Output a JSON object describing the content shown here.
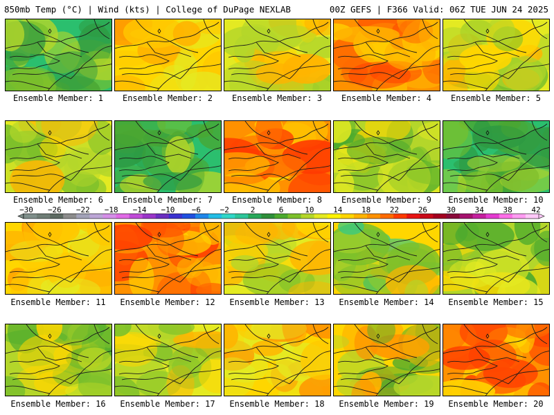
{
  "header": {
    "left": "850mb Temp (°C) | Wind (kts) | College of DuPage NEXLAB",
    "right": "00Z GEFS | F366 Valid: 06Z TUE JUN 24 2025"
  },
  "members": [
    {
      "label": "Ensemble Member: 1",
      "scheme": "cool"
    },
    {
      "label": "Ensemble Member: 2",
      "scheme": "warm"
    },
    {
      "label": "Ensemble Member: 3",
      "scheme": "mild"
    },
    {
      "label": "Ensemble Member: 4",
      "scheme": "hot"
    },
    {
      "label": "Ensemble Member: 5",
      "scheme": "mild"
    },
    {
      "label": "Ensemble Member: 6",
      "scheme": "mild"
    },
    {
      "label": "Ensemble Member: 7",
      "scheme": "cool"
    },
    {
      "label": "Ensemble Member: 8",
      "scheme": "hot"
    },
    {
      "label": "Ensemble Member: 9",
      "scheme": "mildgreen"
    },
    {
      "label": "Ensemble Member: 10",
      "scheme": "cool"
    },
    {
      "label": "Ensemble Member: 11",
      "scheme": "warm"
    },
    {
      "label": "Ensemble Member: 12",
      "scheme": "hot"
    },
    {
      "label": "Ensemble Member: 13",
      "scheme": "mild"
    },
    {
      "label": "Ensemble Member: 14",
      "scheme": "mildcool"
    },
    {
      "label": "Ensemble Member: 15",
      "scheme": "mildgreen"
    },
    {
      "label": "Ensemble Member: 16",
      "scheme": "mildgreen"
    },
    {
      "label": "Ensemble Member: 17",
      "scheme": "mild"
    },
    {
      "label": "Ensemble Member: 18",
      "scheme": "warm"
    },
    {
      "label": "Ensemble Member: 19",
      "scheme": "warmgreen"
    },
    {
      "label": "Ensemble Member: 20",
      "scheme": "hot"
    }
  ],
  "colorbar": {
    "ticks": [
      "−30",
      "−26",
      "−22",
      "−18",
      "−14",
      "−10",
      "−6",
      "−2",
      "2",
      "6",
      "10",
      "14",
      "18",
      "22",
      "26",
      "30",
      "34",
      "38",
      "42"
    ],
    "colors": [
      "#7f8f8b",
      "#6e7d76",
      "#5d6a62",
      "#8c8c8c",
      "#a3a3b8",
      "#bca6d6",
      "#d58ee8",
      "#e06ae6",
      "#c04ad8",
      "#9a35c9",
      "#6a2ec0",
      "#3b32d0",
      "#2050e0",
      "#1f86ea",
      "#23bde6",
      "#30d7c8",
      "#2dc69a",
      "#28a85a",
      "#2e8f3a",
      "#4caa2e",
      "#7cc02b",
      "#b4d62a",
      "#e4ea22",
      "#fff300",
      "#ffd600",
      "#ffb300",
      "#ff9100",
      "#ff6a00",
      "#ff3a00",
      "#e81414",
      "#c80a1a",
      "#a30020",
      "#8a0a3a",
      "#a5126e",
      "#c4209e",
      "#e43ad0",
      "#ff6ee8",
      "#ff9cf2",
      "#ffc8f8"
    ]
  },
  "palettes": {
    "cool": [
      "#2bbf6e",
      "#2e9a42",
      "#4aa632",
      "#7cc02b",
      "#b4d62a"
    ],
    "warm": [
      "#ffd600",
      "#ffb300",
      "#e4ea22",
      "#ffc800",
      "#ff9100"
    ],
    "mild": [
      "#e4ea22",
      "#b4d62a",
      "#ffd600",
      "#ffb300",
      "#7cc02b"
    ],
    "hot": [
      "#ff9100",
      "#ffb300",
      "#ff6a00",
      "#ffd600",
      "#ff3a00"
    ],
    "mildgreen": [
      "#b4d62a",
      "#7cc02b",
      "#e4ea22",
      "#4caa2e",
      "#ffd600"
    ],
    "mildcool": [
      "#ffd600",
      "#b4d62a",
      "#7cc02b",
      "#2ec98a",
      "#ffb300"
    ],
    "warmgreen": [
      "#ffd600",
      "#ffb300",
      "#b4d62a",
      "#4caa2e",
      "#ff9100"
    ]
  }
}
